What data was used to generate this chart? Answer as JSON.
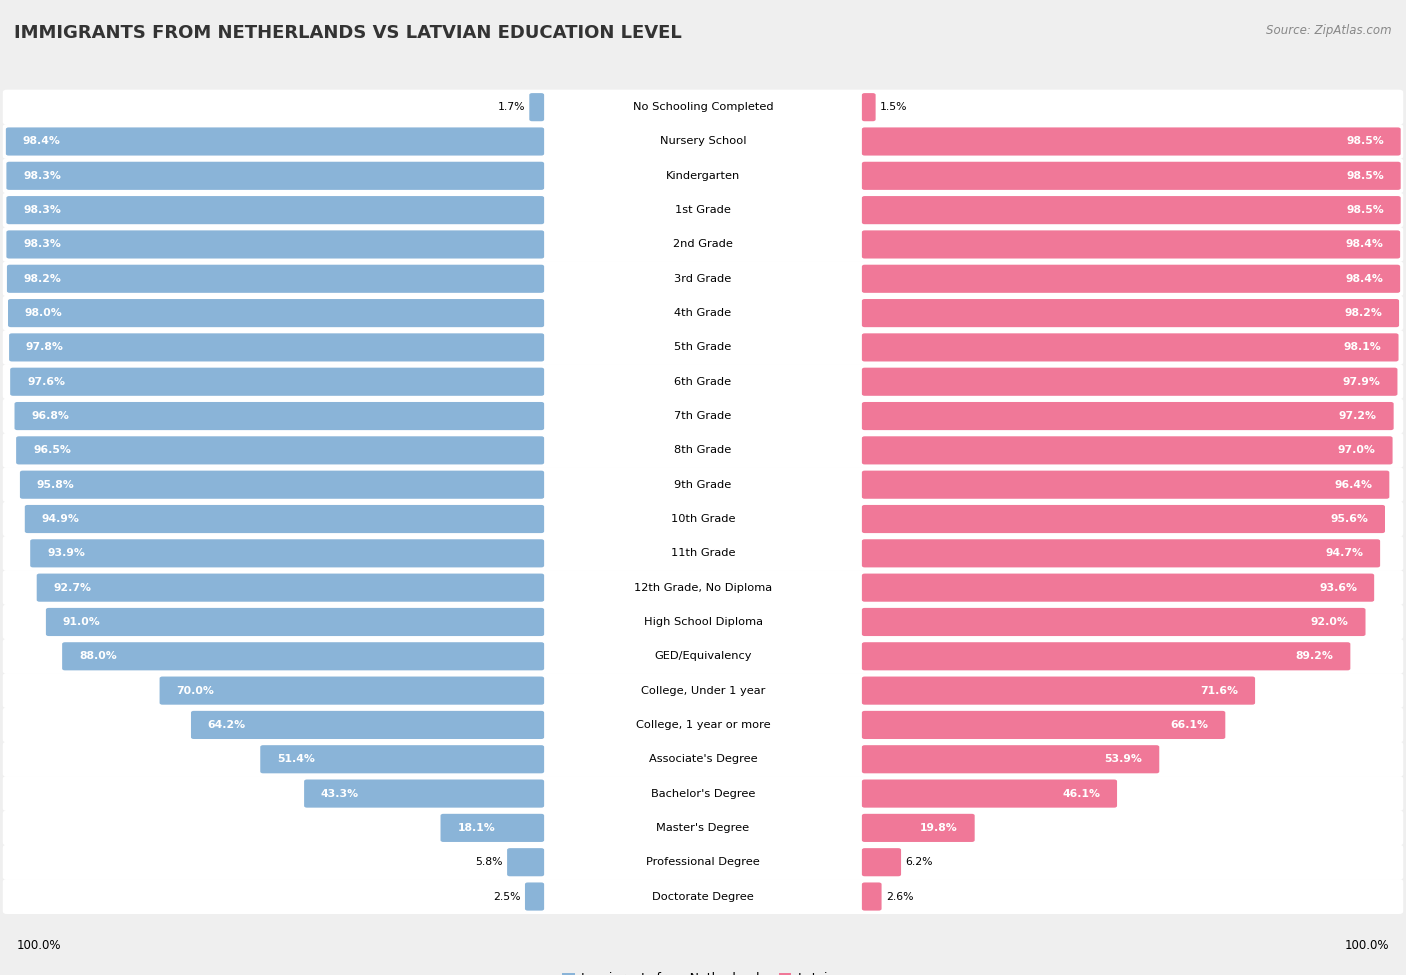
{
  "title": "IMMIGRANTS FROM NETHERLANDS VS LATVIAN EDUCATION LEVEL",
  "source": "Source: ZipAtlas.com",
  "categories": [
    "No Schooling Completed",
    "Nursery School",
    "Kindergarten",
    "1st Grade",
    "2nd Grade",
    "3rd Grade",
    "4th Grade",
    "5th Grade",
    "6th Grade",
    "7th Grade",
    "8th Grade",
    "9th Grade",
    "10th Grade",
    "11th Grade",
    "12th Grade, No Diploma",
    "High School Diploma",
    "GED/Equivalency",
    "College, Under 1 year",
    "College, 1 year or more",
    "Associate's Degree",
    "Bachelor's Degree",
    "Master's Degree",
    "Professional Degree",
    "Doctorate Degree"
  ],
  "netherlands_values": [
    1.7,
    98.4,
    98.3,
    98.3,
    98.3,
    98.2,
    98.0,
    97.8,
    97.6,
    96.8,
    96.5,
    95.8,
    94.9,
    93.9,
    92.7,
    91.0,
    88.0,
    70.0,
    64.2,
    51.4,
    43.3,
    18.1,
    5.8,
    2.5
  ],
  "latvian_values": [
    1.5,
    98.5,
    98.5,
    98.5,
    98.4,
    98.4,
    98.2,
    98.1,
    97.9,
    97.2,
    97.0,
    96.4,
    95.6,
    94.7,
    93.6,
    92.0,
    89.2,
    71.6,
    66.1,
    53.9,
    46.1,
    19.8,
    6.2,
    2.6
  ],
  "netherlands_color": "#8ab4d8",
  "latvian_color": "#f07898",
  "background_color": "#efefef",
  "bar_bg_color": "#ffffff",
  "legend_netherlands": "Immigrants from Netherlands",
  "legend_latvian": "Latvian",
  "title_fontsize": 13,
  "label_fontsize": 8.2,
  "value_fontsize": 7.8
}
